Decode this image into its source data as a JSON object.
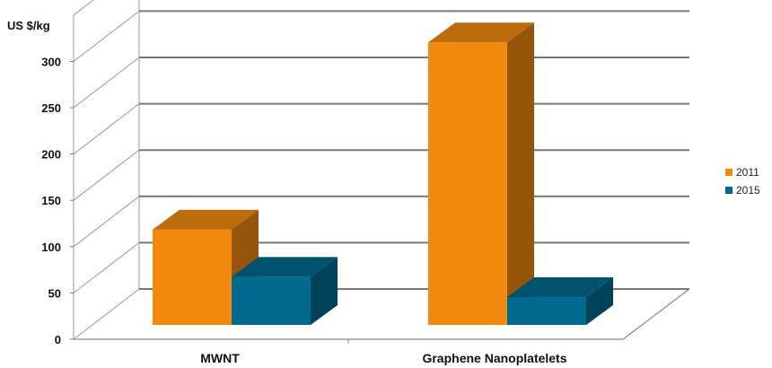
{
  "chart_data": {
    "type": "bar",
    "style": "3d-clustered",
    "ylabel": "US $/kg",
    "categories": [
      "MWNT",
      "Graphene Nanoplatelets"
    ],
    "series": [
      {
        "name": "2011",
        "values": [
          103,
          305
        ],
        "color": "#F28A10"
      },
      {
        "name": "2015",
        "values": [
          52,
          30
        ],
        "color": "#006A8E"
      }
    ],
    "ylim": [
      0,
      300
    ],
    "yticks": [
      "0",
      "50",
      "100",
      "150",
      "200",
      "250",
      "300"
    ],
    "grid": true,
    "legend_position": "right"
  }
}
